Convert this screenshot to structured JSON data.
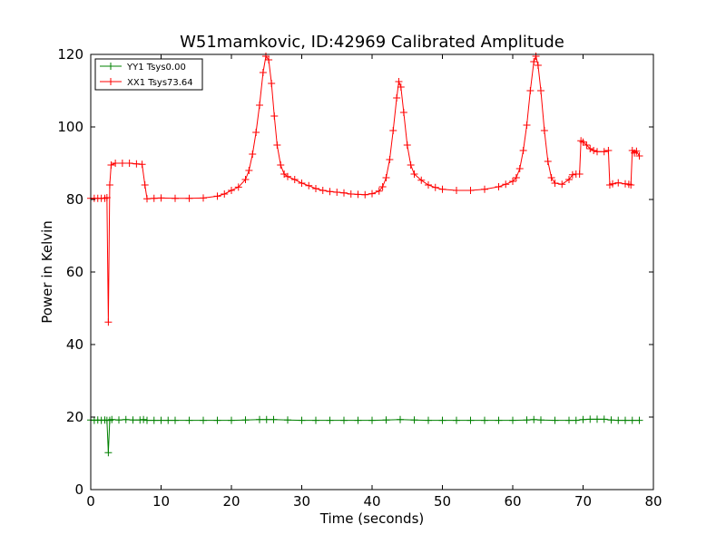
{
  "chart_data": {
    "type": "line",
    "title": "W51mamkovic, ID:42969 Calibrated Amplitude",
    "xlabel": "Time (seconds)",
    "ylabel": "Power in Kelvin",
    "xlim": [
      0,
      80
    ],
    "ylim": [
      0,
      120
    ],
    "xticks": [
      "0",
      "10",
      "20",
      "30",
      "40",
      "50",
      "60",
      "70",
      "80"
    ],
    "yticks": [
      "0",
      "20",
      "40",
      "60",
      "80",
      "100",
      "120"
    ],
    "grid": false,
    "legend_position": "top-left",
    "marker": "+",
    "series": [
      {
        "name": "YY1 Tsys0.00",
        "color": "#008000",
        "points": [
          [
            0,
            19.2
          ],
          [
            0.5,
            19.1
          ],
          [
            1,
            19.2
          ],
          [
            1.5,
            19.1
          ],
          [
            2,
            19.2
          ],
          [
            2.3,
            19.1
          ],
          [
            2.5,
            10.2
          ],
          [
            2.7,
            19.1
          ],
          [
            3,
            19.3
          ],
          [
            4,
            19.2
          ],
          [
            5,
            19.3
          ],
          [
            6,
            19.2
          ],
          [
            7,
            19.2
          ],
          [
            7.5,
            19.3
          ],
          [
            8,
            19.1
          ],
          [
            9,
            19.1
          ],
          [
            10,
            19.1
          ],
          [
            11,
            19.1
          ],
          [
            12,
            19.1
          ],
          [
            14,
            19.1
          ],
          [
            16,
            19.1
          ],
          [
            18,
            19.1
          ],
          [
            20,
            19.1
          ],
          [
            22,
            19.2
          ],
          [
            24,
            19.3
          ],
          [
            25,
            19.3
          ],
          [
            26,
            19.3
          ],
          [
            28,
            19.2
          ],
          [
            30,
            19.1
          ],
          [
            32,
            19.1
          ],
          [
            34,
            19.1
          ],
          [
            36,
            19.1
          ],
          [
            38,
            19.1
          ],
          [
            40,
            19.1
          ],
          [
            42,
            19.2
          ],
          [
            44,
            19.3
          ],
          [
            46,
            19.2
          ],
          [
            48,
            19.1
          ],
          [
            50,
            19.1
          ],
          [
            52,
            19.1
          ],
          [
            54,
            19.1
          ],
          [
            56,
            19.1
          ],
          [
            58,
            19.1
          ],
          [
            60,
            19.1
          ],
          [
            62,
            19.2
          ],
          [
            63,
            19.3
          ],
          [
            64,
            19.2
          ],
          [
            66,
            19.1
          ],
          [
            68,
            19.1
          ],
          [
            69,
            19.1
          ],
          [
            70,
            19.3
          ],
          [
            71,
            19.4
          ],
          [
            72,
            19.4
          ],
          [
            73,
            19.4
          ],
          [
            74,
            19.2
          ],
          [
            75,
            19.1
          ],
          [
            76,
            19.1
          ],
          [
            77,
            19.1
          ],
          [
            78,
            19.1
          ]
        ]
      },
      {
        "name": "XX1 Tsys73.64",
        "color": "#ff0000",
        "points": [
          [
            0,
            80.3
          ],
          [
            0.5,
            80.3
          ],
          [
            1,
            80.3
          ],
          [
            1.5,
            80.3
          ],
          [
            2,
            80.3
          ],
          [
            2.3,
            80.5
          ],
          [
            2.5,
            46.2
          ],
          [
            2.7,
            84
          ],
          [
            2.9,
            89.5
          ],
          [
            3.5,
            90
          ],
          [
            4.5,
            90
          ],
          [
            5.5,
            90
          ],
          [
            6.5,
            89.8
          ],
          [
            7.3,
            89.7
          ],
          [
            7.7,
            84
          ],
          [
            8,
            80.2
          ],
          [
            9,
            80.3
          ],
          [
            10,
            80.4
          ],
          [
            12,
            80.3
          ],
          [
            14,
            80.3
          ],
          [
            16,
            80.4
          ],
          [
            18,
            80.9
          ],
          [
            19,
            81.5
          ],
          [
            20,
            82.5
          ],
          [
            21,
            83.4
          ],
          [
            22,
            85.5
          ],
          [
            22.5,
            88
          ],
          [
            23,
            92.5
          ],
          [
            23.5,
            98.5
          ],
          [
            24,
            106
          ],
          [
            24.5,
            115
          ],
          [
            24.9,
            119.5
          ],
          [
            25.3,
            118.5
          ],
          [
            25.7,
            112
          ],
          [
            26.1,
            103
          ],
          [
            26.5,
            95
          ],
          [
            27,
            89.5
          ],
          [
            27.5,
            87
          ],
          [
            28,
            86.3
          ],
          [
            29,
            85.5
          ],
          [
            30,
            84.5
          ],
          [
            31,
            83.8
          ],
          [
            32,
            83
          ],
          [
            33,
            82.5
          ],
          [
            34,
            82.2
          ],
          [
            35,
            82
          ],
          [
            36,
            81.8
          ],
          [
            37,
            81.5
          ],
          [
            38,
            81.4
          ],
          [
            39,
            81.3
          ],
          [
            40,
            81.6
          ],
          [
            41,
            82.3
          ],
          [
            41.5,
            83.5
          ],
          [
            42,
            86
          ],
          [
            42.5,
            91
          ],
          [
            43,
            99
          ],
          [
            43.5,
            108
          ],
          [
            43.8,
            112.5
          ],
          [
            44.1,
            111
          ],
          [
            44.5,
            104
          ],
          [
            45,
            95
          ],
          [
            45.5,
            89.5
          ],
          [
            46,
            87
          ],
          [
            47,
            85.3
          ],
          [
            48,
            84
          ],
          [
            49,
            83.3
          ],
          [
            50,
            82.8
          ],
          [
            52,
            82.5
          ],
          [
            54,
            82.5
          ],
          [
            56,
            82.8
          ],
          [
            58,
            83.5
          ],
          [
            59,
            84.2
          ],
          [
            60,
            85
          ],
          [
            60.5,
            86
          ],
          [
            61,
            88.5
          ],
          [
            61.5,
            93.5
          ],
          [
            62,
            100.5
          ],
          [
            62.5,
            110
          ],
          [
            63,
            118
          ],
          [
            63.3,
            119.5
          ],
          [
            63.6,
            117
          ],
          [
            64,
            110
          ],
          [
            64.5,
            99
          ],
          [
            65,
            90.5
          ],
          [
            65.5,
            86
          ],
          [
            66,
            84.5
          ],
          [
            67,
            84.2
          ],
          [
            68,
            85.5
          ],
          [
            68.5,
            86.8
          ],
          [
            69,
            87
          ],
          [
            69.5,
            87
          ],
          [
            69.7,
            96.2
          ],
          [
            70,
            95.8
          ],
          [
            70.5,
            95
          ],
          [
            71,
            94
          ],
          [
            71.5,
            93.5
          ],
          [
            72,
            93.2
          ],
          [
            73,
            93.2
          ],
          [
            73.6,
            93.5
          ],
          [
            73.8,
            84
          ],
          [
            74.2,
            84.3
          ],
          [
            75,
            84.6
          ],
          [
            76,
            84.3
          ],
          [
            76.5,
            84.2
          ],
          [
            76.8,
            84
          ],
          [
            77,
            93.5
          ],
          [
            77.3,
            92.8
          ],
          [
            77.6,
            93.3
          ],
          [
            78,
            92
          ]
        ]
      }
    ]
  }
}
